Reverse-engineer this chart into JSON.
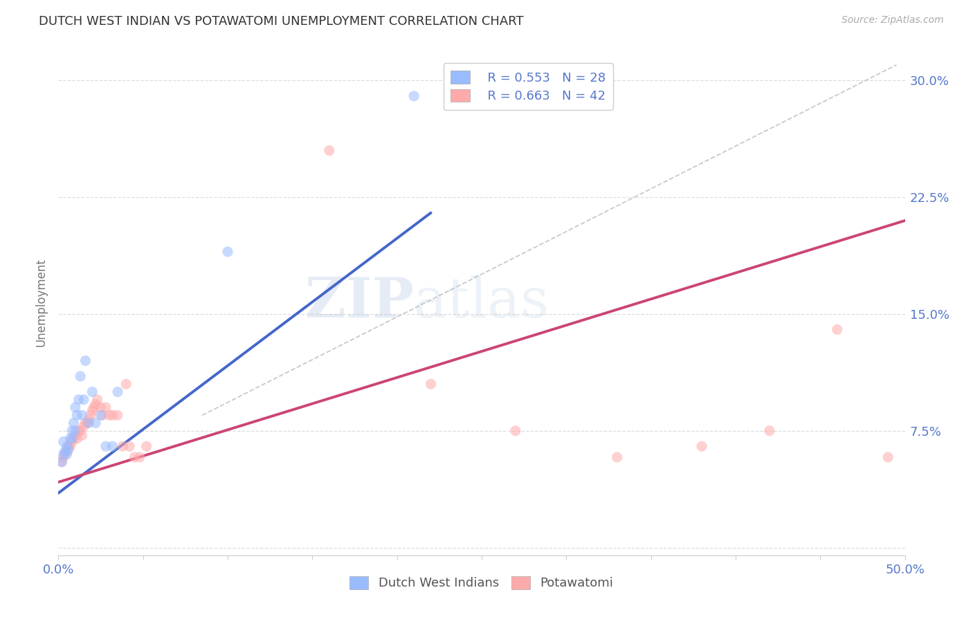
{
  "title": "DUTCH WEST INDIAN VS POTAWATOMI UNEMPLOYMENT CORRELATION CHART",
  "source": "Source: ZipAtlas.com",
  "ylabel": "Unemployment",
  "xlim": [
    0.0,
    0.5
  ],
  "ylim": [
    -0.005,
    0.32
  ],
  "xticks": [
    0.0,
    0.05,
    0.1,
    0.15,
    0.2,
    0.25,
    0.3,
    0.35,
    0.4,
    0.45,
    0.5
  ],
  "yticks": [
    0.0,
    0.075,
    0.15,
    0.225,
    0.3
  ],
  "legend_r1": "R = 0.553",
  "legend_n1": "N = 28",
  "legend_r2": "R = 0.663",
  "legend_n2": "N = 42",
  "legend_label1": "Dutch West Indians",
  "legend_label2": "Potawatomi",
  "blue_scatter_x": [
    0.002,
    0.003,
    0.003,
    0.004,
    0.005,
    0.005,
    0.006,
    0.007,
    0.008,
    0.008,
    0.009,
    0.01,
    0.01,
    0.011,
    0.012,
    0.013,
    0.014,
    0.015,
    0.016,
    0.018,
    0.02,
    0.022,
    0.025,
    0.028,
    0.032,
    0.035,
    0.21,
    0.1
  ],
  "blue_scatter_y": [
    0.055,
    0.06,
    0.068,
    0.062,
    0.06,
    0.065,
    0.063,
    0.07,
    0.07,
    0.075,
    0.08,
    0.075,
    0.09,
    0.085,
    0.095,
    0.11,
    0.085,
    0.095,
    0.12,
    0.08,
    0.1,
    0.08,
    0.085,
    0.065,
    0.065,
    0.1,
    0.29,
    0.19
  ],
  "pink_scatter_x": [
    0.002,
    0.003,
    0.004,
    0.005,
    0.006,
    0.007,
    0.008,
    0.009,
    0.01,
    0.011,
    0.012,
    0.013,
    0.014,
    0.015,
    0.016,
    0.017,
    0.018,
    0.019,
    0.02,
    0.021,
    0.022,
    0.023,
    0.025,
    0.026,
    0.028,
    0.03,
    0.032,
    0.035,
    0.038,
    0.04,
    0.042,
    0.045,
    0.048,
    0.052,
    0.16,
    0.22,
    0.27,
    0.33,
    0.38,
    0.42,
    0.46,
    0.49
  ],
  "pink_scatter_y": [
    0.055,
    0.058,
    0.06,
    0.062,
    0.065,
    0.065,
    0.068,
    0.07,
    0.072,
    0.07,
    0.075,
    0.075,
    0.072,
    0.078,
    0.08,
    0.08,
    0.082,
    0.085,
    0.088,
    0.09,
    0.092,
    0.095,
    0.09,
    0.085,
    0.09,
    0.085,
    0.085,
    0.085,
    0.065,
    0.105,
    0.065,
    0.058,
    0.058,
    0.065,
    0.255,
    0.105,
    0.075,
    0.058,
    0.065,
    0.075,
    0.14,
    0.058
  ],
  "blue_line_x": [
    0.0,
    0.22
  ],
  "blue_line_y": [
    0.035,
    0.215
  ],
  "pink_line_x": [
    0.0,
    0.5
  ],
  "pink_line_y": [
    0.042,
    0.21
  ],
  "diag_line_x": [
    0.085,
    0.495
  ],
  "diag_line_y": [
    0.085,
    0.31
  ],
  "watermark_zip": "ZIP",
  "watermark_atlas": "atlas",
  "background_color": "#ffffff",
  "blue_color": "#99bbff",
  "pink_color": "#ffaaaa",
  "blue_line_color": "#4466cc",
  "pink_line_color": "#cc4477",
  "diag_line_color": "#bbbbbb",
  "grid_color": "#dddddd",
  "title_color": "#333333",
  "tick_color": "#5577cc",
  "scatter_alpha": 0.55,
  "scatter_size": 120
}
